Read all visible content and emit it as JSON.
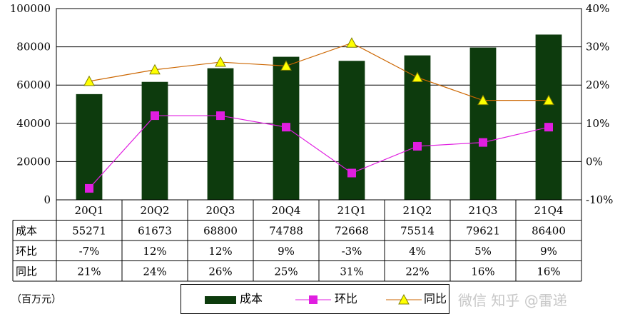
{
  "chart_data": {
    "type": "bar",
    "categories": [
      "20Q1",
      "20Q2",
      "20Q3",
      "20Q4",
      "21Q1",
      "21Q2",
      "21Q3",
      "21Q4"
    ],
    "series": [
      {
        "name": "成本",
        "type": "bar",
        "axis": "left",
        "color": "#0d3b0d",
        "values": [
          55271,
          61673,
          68800,
          74788,
          72668,
          75514,
          79621,
          86400
        ]
      },
      {
        "name": "环比",
        "type": "line",
        "axis": "right",
        "marker": "square",
        "color": "#e01ee0",
        "values": [
          -7,
          12,
          12,
          9,
          -3,
          4,
          5,
          9
        ]
      },
      {
        "name": "同比",
        "type": "line",
        "axis": "right",
        "marker": "triangle",
        "color": "#cc6600",
        "marker_color": "#ffff00",
        "values": [
          21,
          24,
          26,
          25,
          31,
          22,
          16,
          16
        ]
      }
    ],
    "left_axis": {
      "min": 0,
      "max": 100000,
      "ticks": [
        "0",
        "20000",
        "40000",
        "60000",
        "80000",
        "100000"
      ]
    },
    "right_axis": {
      "min": -10,
      "max": 40,
      "ticks": [
        "-10%",
        "0%",
        "10%",
        "20%",
        "30%",
        "40%"
      ]
    },
    "table": {
      "row_labels": [
        "成本",
        "环比",
        "同比"
      ],
      "rows": [
        [
          "55271",
          "61673",
          "68800",
          "74788",
          "72668",
          "75514",
          "79621",
          "86400"
        ],
        [
          "-7%",
          "12%",
          "12%",
          "9%",
          "-3%",
          "4%",
          "5%",
          "9%"
        ],
        [
          "21%",
          "24%",
          "26%",
          "25%",
          "31%",
          "22%",
          "16%",
          "16%"
        ]
      ]
    },
    "unit_label": "（百万元）",
    "legend": {
      "position": "bottom",
      "items": [
        "成本",
        "环比",
        "同比"
      ]
    }
  },
  "watermark": "微信 知乎 @雷递"
}
